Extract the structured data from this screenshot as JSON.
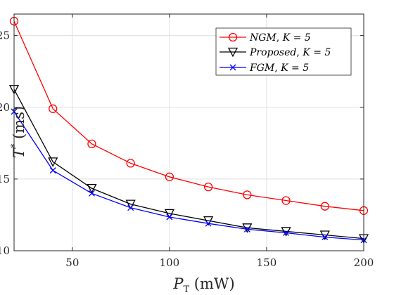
{
  "chart_data": {
    "type": "line",
    "xlabel": "P_T (mW)",
    "ylabel": "T* (ms)",
    "xlim": [
      20,
      200
    ],
    "ylim": [
      10,
      26.5
    ],
    "xticks": [
      50,
      100,
      150,
      200
    ],
    "yticks": [
      10,
      15,
      20,
      25
    ],
    "grid": true,
    "legend_position": "top-right",
    "x": [
      20,
      40,
      60,
      80,
      100,
      120,
      140,
      160,
      180,
      200
    ],
    "series": [
      {
        "name": "NGM, K = 5",
        "color": "#ff0000",
        "marker": "circle",
        "values": [
          26.0,
          19.9,
          17.45,
          16.1,
          15.15,
          14.45,
          13.9,
          13.5,
          13.1,
          12.8
        ]
      },
      {
        "name": "Proposed, K = 5",
        "color": "#000000",
        "marker": "triangle-down",
        "values": [
          21.25,
          16.2,
          14.35,
          13.25,
          12.6,
          12.1,
          11.6,
          11.35,
          11.1,
          10.85
        ]
      },
      {
        "name": "FGM, K = 5",
        "color": "#0000ff",
        "marker": "x",
        "values": [
          19.7,
          15.6,
          14.0,
          13.0,
          12.35,
          11.9,
          11.5,
          11.25,
          10.95,
          10.75
        ]
      }
    ]
  },
  "legend": {
    "s0": {
      "label": "NGM",
      "param": "K = 5"
    },
    "s1": {
      "label": "Proposed",
      "param": "K = 5"
    },
    "s2": {
      "label": "FGM",
      "param": "K = 5"
    }
  },
  "axes": {
    "ylabel_main": "T",
    "ylabel_sup": "*",
    "ylabel_unit": " (ms)",
    "xlabel_main": "P",
    "xlabel_sub": "T",
    "xlabel_unit": " (mW)"
  }
}
